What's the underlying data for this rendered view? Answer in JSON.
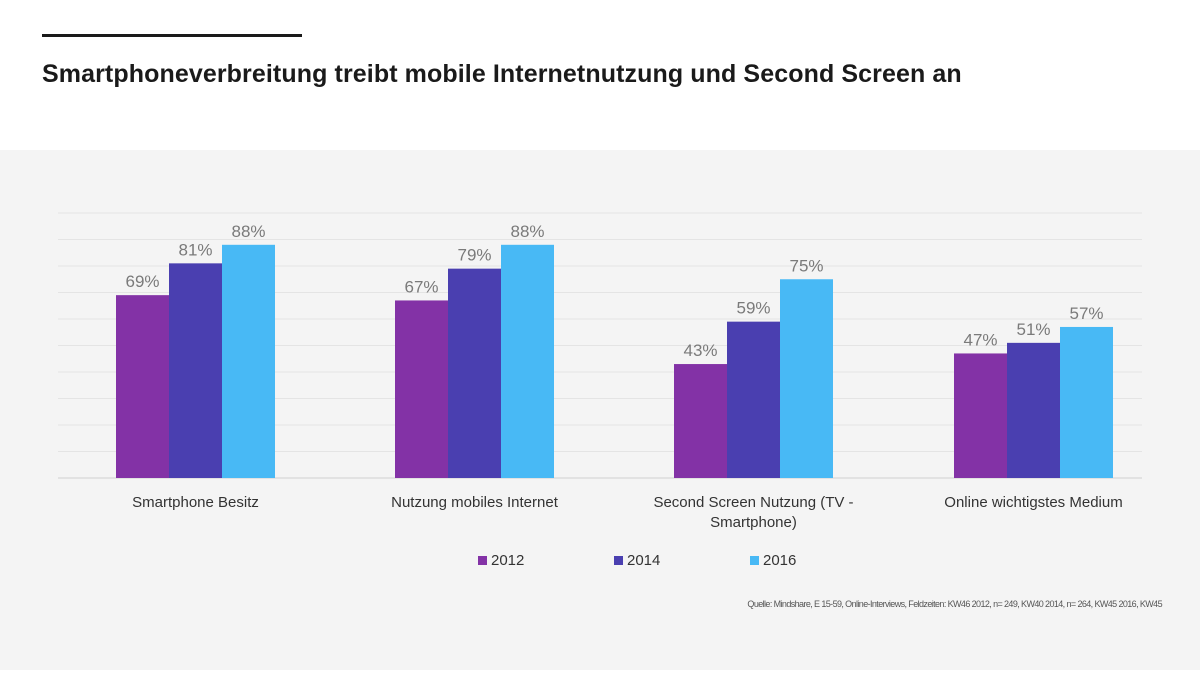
{
  "title": "Smartphoneverbreitung treibt mobile Internetnutzung und Second Screen an",
  "source": "Quelle: Mindshare, E 15-59, Online-Interviews, Feldzeiten: KW46 2012, n= 249, KW40 2014, n= 264, KW45 2016, KW45",
  "chart_data": {
    "type": "bar",
    "categories": [
      [
        "Smartphone Besitz"
      ],
      [
        "Nutzung mobiles Internet"
      ],
      [
        "Second Screen Nutzung (TV -",
        "Smartphone)"
      ],
      [
        "Online wichtigstes Medium"
      ]
    ],
    "series": [
      {
        "name": "2012",
        "color": "#8332a6",
        "values": [
          69,
          67,
          43,
          47
        ],
        "labels": [
          "69%",
          "67%",
          "43%",
          "47%"
        ]
      },
      {
        "name": "2014",
        "color": "#4a3fb0",
        "values": [
          81,
          79,
          59,
          51
        ],
        "labels": [
          "81%",
          "79%",
          "59%",
          "51%"
        ]
      },
      {
        "name": "2016",
        "color": "#48b9f5",
        "values": [
          88,
          88,
          75,
          57
        ],
        "labels": [
          "88%",
          "88%",
          "75%",
          "57%"
        ]
      }
    ],
    "ylim": [
      0,
      100
    ],
    "grid": true,
    "legend_position": "bottom"
  }
}
